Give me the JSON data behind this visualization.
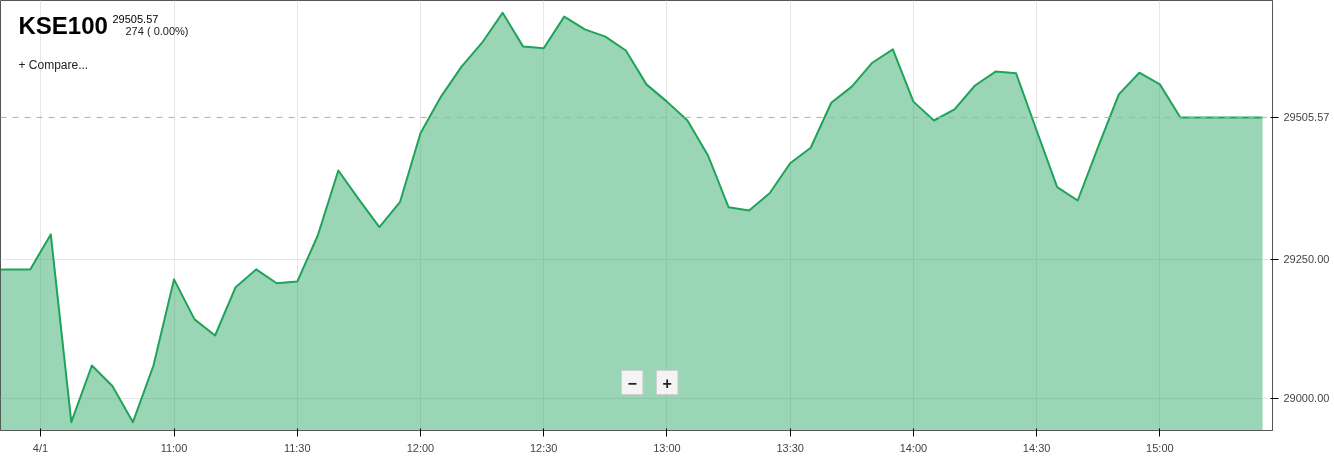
{
  "chart_data": {
    "type": "area",
    "title": "KSE100",
    "subtitle": "29505.57",
    "annotations": [
      "274 ( 0.00%)",
      "+ Compare...",
      "−",
      "+"
    ],
    "x": [
      10.296,
      10.4167,
      10.5,
      10.5833,
      10.6667,
      10.75,
      10.8333,
      10.9167,
      11.0,
      11.0833,
      11.1667,
      11.25,
      11.3333,
      11.4167,
      11.5,
      11.5833,
      11.6667,
      11.75,
      11.8333,
      11.9167,
      12.0,
      12.0833,
      12.1667,
      12.25,
      12.3333,
      12.4167,
      12.5,
      12.5833,
      12.6667,
      12.75,
      12.8333,
      12.9167,
      13.0,
      13.0833,
      13.1667,
      13.25,
      13.3333,
      13.4167,
      13.5,
      13.5833,
      13.6667,
      13.75,
      13.8333,
      13.9167,
      14.0,
      14.0833,
      14.1667,
      14.25,
      14.3333,
      14.4167,
      14.5,
      14.5833,
      14.6667,
      14.75,
      14.8333,
      14.9167,
      15.0,
      15.0833,
      15.4167
    ],
    "series": [
      {
        "color": "#1fa35a",
        "values": [
          29232,
          29232,
          29295,
          28957,
          29059,
          29022,
          28957,
          29059,
          29214,
          29142,
          29113,
          29200,
          29232,
          29207,
          29210,
          29293,
          29410,
          29358,
          29308,
          29353,
          29477,
          29543,
          29597,
          29640,
          29694,
          29633,
          29630,
          29687,
          29664,
          29651,
          29626,
          29565,
          29534,
          29500,
          29437,
          29344,
          29338,
          29369,
          29423,
          29451,
          29532,
          29561,
          29604,
          29628,
          29534,
          29500,
          29520,
          29563,
          29588,
          29585,
          29482,
          29380,
          29356,
          29453,
          29547,
          29586,
          29565,
          29505.57,
          29505.57
        ]
      }
    ],
    "xlim": [
      10.296,
      15.457
    ],
    "ylim": [
      28942,
      29716
    ],
    "xticks": [
      {
        "value": 10.4583,
        "label": "4/1"
      },
      {
        "value": 11,
        "label": "11:00"
      },
      {
        "value": 11.5,
        "label": "11:30"
      },
      {
        "value": 12,
        "label": "12:00"
      },
      {
        "value": 12.5,
        "label": "12:30"
      },
      {
        "value": 13,
        "label": "13:00"
      },
      {
        "value": 13.5,
        "label": "13:30"
      },
      {
        "value": 14,
        "label": "14:00"
      },
      {
        "value": 14.5,
        "label": "14:30"
      },
      {
        "value": 15,
        "label": "15:00"
      }
    ],
    "yticks": [
      {
        "value": 29000,
        "label": "29000.00"
      },
      {
        "value": 29250,
        "label": "29250.00"
      }
    ],
    "ref_lines": [
      {
        "axis": "y",
        "value": 29505.57,
        "label": "29505.57",
        "color": "#8bc48a",
        "line_style": "dashed"
      }
    ],
    "grid": true
  }
}
